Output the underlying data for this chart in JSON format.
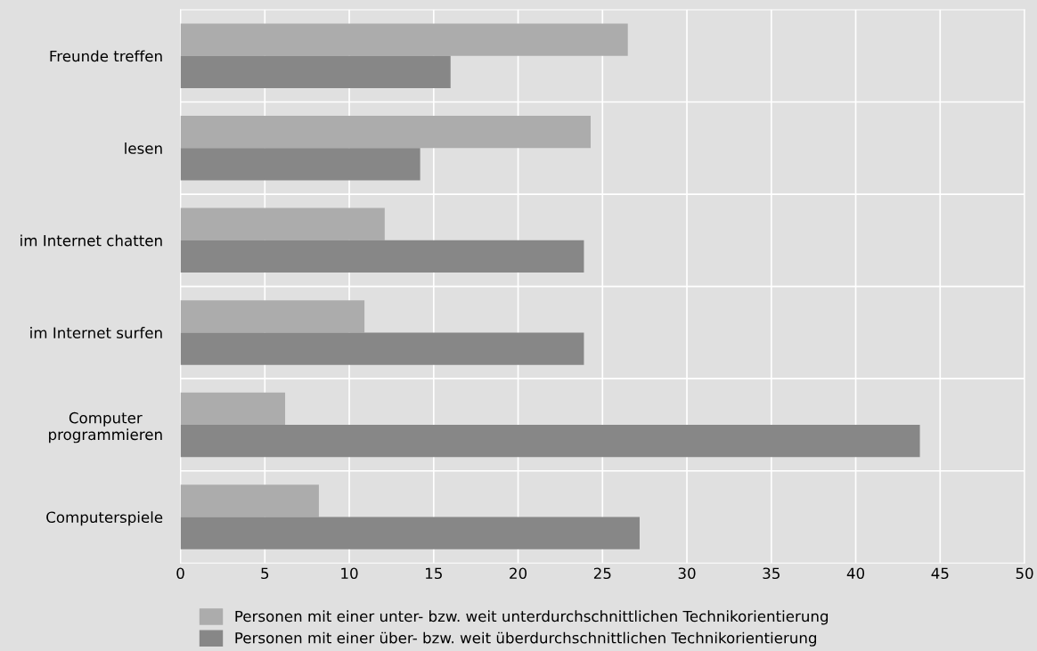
{
  "chart_data": {
    "type": "bar",
    "orientation": "horizontal",
    "categories": [
      "Freunde treffen",
      "lesen",
      "im Internet chatten",
      "im Internet surfen",
      "Computer\nprogrammieren",
      "Computerspiele"
    ],
    "series": [
      {
        "name": "Personen mit einer unter- bzw. weit unterdurchschnittlichen Technikorientierung",
        "color": "#acacac",
        "values": [
          26.5,
          24.3,
          12.1,
          10.9,
          6.2,
          8.2
        ]
      },
      {
        "name": "Personen mit einer über- bzw. weit überdurchschnittlichen Technikorientierung",
        "color": "#878787",
        "values": [
          16.0,
          14.2,
          23.9,
          23.9,
          43.8,
          27.2
        ]
      }
    ],
    "xlim": [
      0,
      50
    ],
    "xticks": [
      0,
      5,
      10,
      15,
      20,
      25,
      30,
      35,
      40,
      45,
      50
    ],
    "grid": "x",
    "legend": "bottom"
  }
}
